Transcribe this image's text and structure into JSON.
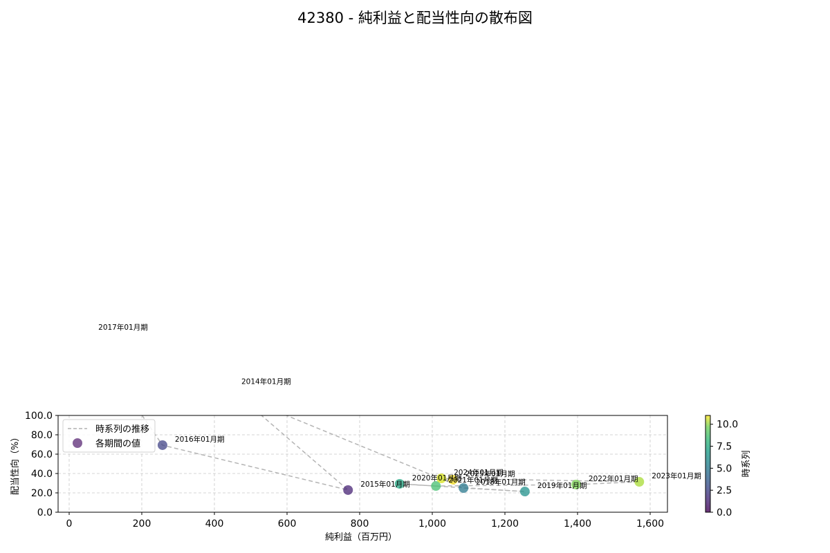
{
  "chart_data": {
    "type": "scatter",
    "title": "42380 - 純利益と配当性向の散布図",
    "xlabel": "純利益（百万円）",
    "ylabel": "配当性向（%）",
    "xlim": [
      -30,
      1645
    ],
    "ylim": [
      0,
      100
    ],
    "xticks": [
      0,
      200,
      400,
      600,
      800,
      1000,
      1200,
      1400,
      1600
    ],
    "xtick_labels": [
      "0",
      "200",
      "400",
      "600",
      "800",
      "1,000",
      "1,200",
      "1,400",
      "1,600"
    ],
    "yticks": [
      0,
      20,
      40,
      60,
      80,
      100
    ],
    "ytick_labels": [
      "0.0",
      "20.0",
      "40.0",
      "60.0",
      "80.0",
      "100.0"
    ],
    "grid": true,
    "legend": {
      "position": "upper left",
      "entries": [
        {
          "label": "時系列の推移",
          "type": "dashed-line",
          "color": "#b0b0b0"
        },
        {
          "label": "各期間の値",
          "type": "marker",
          "color": "#5b2a76"
        }
      ]
    },
    "colorbar": {
      "label": "時系列",
      "colormap": "viridis",
      "range": [
        0,
        11
      ],
      "ticks": [
        0.0,
        2.5,
        5.0,
        7.5,
        10.0
      ],
      "tick_labels": [
        "0.0",
        "2.5",
        "5.0",
        "7.5",
        "10.0"
      ]
    },
    "points": [
      {
        "label": "2014年01月期",
        "x": 440,
        "y": 129,
        "t": 0
      },
      {
        "label": "2015年01月期",
        "x": 768,
        "y": 22.9,
        "t": 1
      },
      {
        "label": "2016年01月期",
        "x": 257,
        "y": 69.3,
        "t": 2
      },
      {
        "label": "2017年01月期",
        "x": 46,
        "y": 185,
        "t": 3
      },
      {
        "label": "2018年01月期",
        "x": 1086,
        "y": 25.0,
        "t": 4
      },
      {
        "label": "2019年01月期",
        "x": 1255,
        "y": 21.4,
        "t": 5
      },
      {
        "label": "2020年01月期",
        "x": 910,
        "y": 29.3,
        "t": 6
      },
      {
        "label": "2021年01月期",
        "x": 1010,
        "y": 27.1,
        "t": 7
      },
      {
        "label": "2022年01月期",
        "x": 1396,
        "y": 28.6,
        "t": 8
      },
      {
        "label": "2023年01月期",
        "x": 1570,
        "y": 31.4,
        "t": 9
      },
      {
        "label": "2024年01月期",
        "x": 1025,
        "y": 35.0,
        "t": 10
      },
      {
        "label": "2025年01月期",
        "x": 1057,
        "y": 33.6,
        "t": 11
      }
    ]
  }
}
